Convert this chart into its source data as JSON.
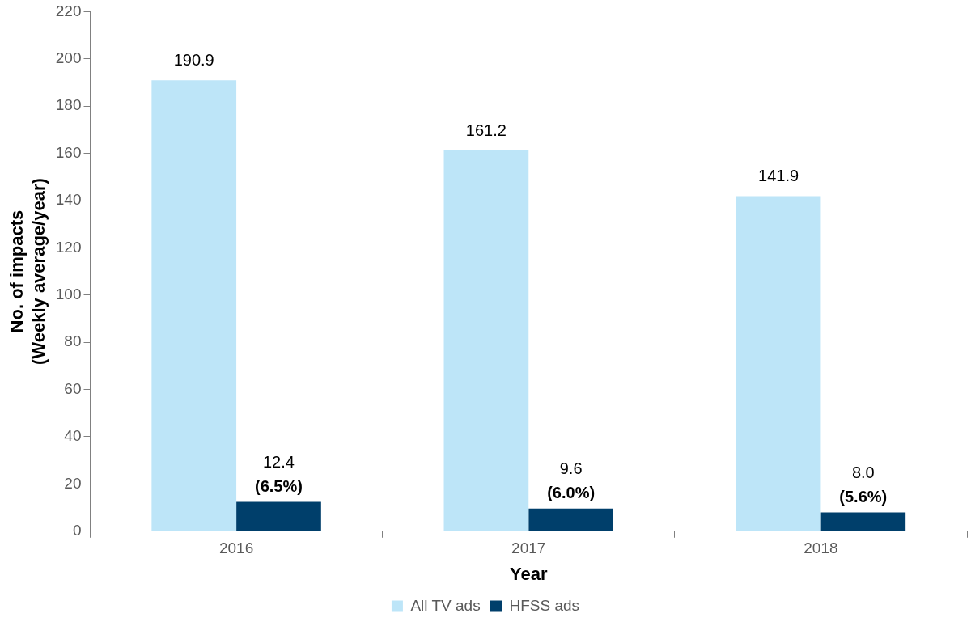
{
  "chart_data": {
    "type": "bar",
    "xlabel": "Year",
    "ylabel": "No. of impacts\n(Weekly average/year)",
    "categories": [
      "2016",
      "2017",
      "2018"
    ],
    "series": [
      {
        "name": "All TV ads",
        "color": "#bde5f8",
        "values": [
          190.9,
          161.2,
          141.9
        ],
        "value_labels": [
          "190.9",
          "161.2",
          "141.9"
        ]
      },
      {
        "name": "HFSS ads",
        "color": "#003f6b",
        "values": [
          12.4,
          9.6,
          8.0
        ],
        "value_labels": [
          "12.4",
          "9.6",
          "8.0"
        ]
      }
    ],
    "ylim": [
      0,
      220
    ],
    "yticks": [
      0,
      20,
      40,
      60,
      80,
      100,
      120,
      140,
      160,
      180,
      200,
      220
    ],
    "grid": false,
    "legend": "bottom",
    "annotations": [
      {
        "text": "(6.5%)",
        "x": "2016",
        "y": 12.4
      },
      {
        "text": "(6.0%)",
        "x": "2017",
        "y": 9.6
      },
      {
        "text": "(5.6%)",
        "x": "2018",
        "y": 8.0
      }
    ]
  }
}
